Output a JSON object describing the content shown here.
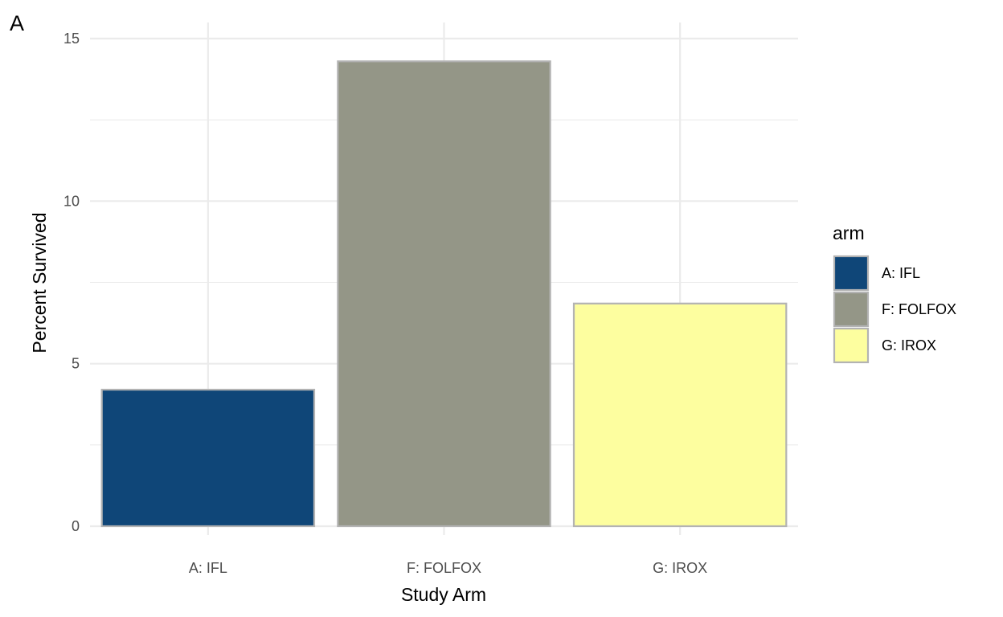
{
  "panel_label": "A",
  "chart_data": {
    "type": "bar",
    "categories": [
      "A: IFL",
      "F: FOLFOX",
      "G: IROX"
    ],
    "values": [
      4.2,
      14.3,
      6.85
    ],
    "xlabel": "Study Arm",
    "ylabel": "Percent Survived",
    "ylim": [
      0,
      15
    ],
    "yticks": [
      0,
      5,
      10,
      15
    ],
    "grid": true,
    "colors": [
      "#0f4678",
      "#949687",
      "#fdfe9f"
    ],
    "bar_outline_color": "#b3b3b3",
    "grid_color": "#ebebeb",
    "legend": {
      "title": "arm",
      "position": "right",
      "entries": [
        "A: IFL",
        "F: FOLFOX",
        "G: IROX"
      ]
    }
  }
}
